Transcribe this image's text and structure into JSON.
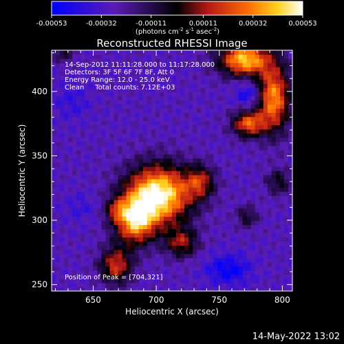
{
  "chart_data": {
    "type": "heatmap",
    "title": "Reconstructed RHESSI Image",
    "xlabel": "Heliocentric X (arcsec)",
    "ylabel": "Heliocentric Y (arcsec)",
    "xlim": [
      617,
      808
    ],
    "ylim": [
      245,
      432
    ],
    "x_ticks": [
      "650",
      "700",
      "750",
      "800"
    ],
    "x_tick_values": [
      650,
      700,
      750,
      800
    ],
    "y_ticks": [
      "250",
      "300",
      "350",
      "400"
    ],
    "y_tick_values": [
      250,
      300,
      350,
      400
    ],
    "colorbar": {
      "ticks": [
        "-0.00053",
        "-0.00032",
        "-0.00011",
        "0.00011",
        "0.00032",
        "0.00053"
      ],
      "tick_values": [
        -0.00053,
        -0.00032,
        -0.00011,
        0.00011,
        0.00032,
        0.00053
      ],
      "range": [
        -0.00053,
        0.00053
      ],
      "units": "(photons cm",
      "units_exp1": "-2",
      "units_s": " s",
      "units_exp2": "-1",
      "units_asec": " asec",
      "units_exp3": "-2",
      "units_close": ")"
    },
    "annotations": [
      "14-Sep-2012 11:11:28.000 to 11:17:28.000",
      "Detectors: 3F 5F 6F 7F 8F, Att 0",
      "Energy Range: 12.0 - 25.0 keV",
      "Clean     Total counts: 7.12E+03"
    ],
    "peak_label": "Position of Peak = [704,321]",
    "peak": [
      704,
      321
    ],
    "sources": [
      {
        "x": 702,
        "y": 320,
        "sx": 18,
        "sy": 16,
        "amp": 1.0
      },
      {
        "x": 683,
        "y": 300,
        "sx": 11,
        "sy": 13,
        "amp": 0.75
      },
      {
        "x": 668,
        "y": 265,
        "sx": 9,
        "sy": 10,
        "amp": 0.55
      },
      {
        "x": 735,
        "y": 330,
        "sx": 8,
        "sy": 9,
        "amp": 0.45
      },
      {
        "x": 720,
        "y": 283,
        "sx": 9,
        "sy": 8,
        "amp": 0.45
      },
      {
        "x": 770,
        "y": 425,
        "sx": 14,
        "sy": 9,
        "amp": 0.85
      },
      {
        "x": 793,
        "y": 395,
        "sx": 9,
        "sy": 18,
        "amp": 0.75
      },
      {
        "x": 773,
        "y": 375,
        "sx": 9,
        "sy": 7,
        "amp": 0.65
      },
      {
        "x": 797,
        "y": 330,
        "sx": 7,
        "sy": 7,
        "amp": 0.3
      },
      {
        "x": 772,
        "y": 303,
        "sx": 6,
        "sy": 6,
        "amp": 0.28
      },
      {
        "x": 668,
        "y": 308,
        "sx": 6,
        "sy": 6,
        "amp": 0.3
      },
      {
        "x": 626,
        "y": 430,
        "sx": 6,
        "sy": 5,
        "amp": 0.25
      },
      {
        "x": 773,
        "y": 398,
        "sx": 7,
        "sy": 7,
        "amp": -0.35
      },
      {
        "x": 757,
        "y": 262,
        "sx": 12,
        "sy": 8,
        "amp": -0.4
      },
      {
        "x": 633,
        "y": 392,
        "sx": 10,
        "sy": 10,
        "amp": -0.18
      },
      {
        "x": 640,
        "y": 310,
        "sx": 10,
        "sy": 8,
        "amp": -0.15
      }
    ]
  },
  "footer": {
    "date_label": "14-May-2022 13:02"
  }
}
